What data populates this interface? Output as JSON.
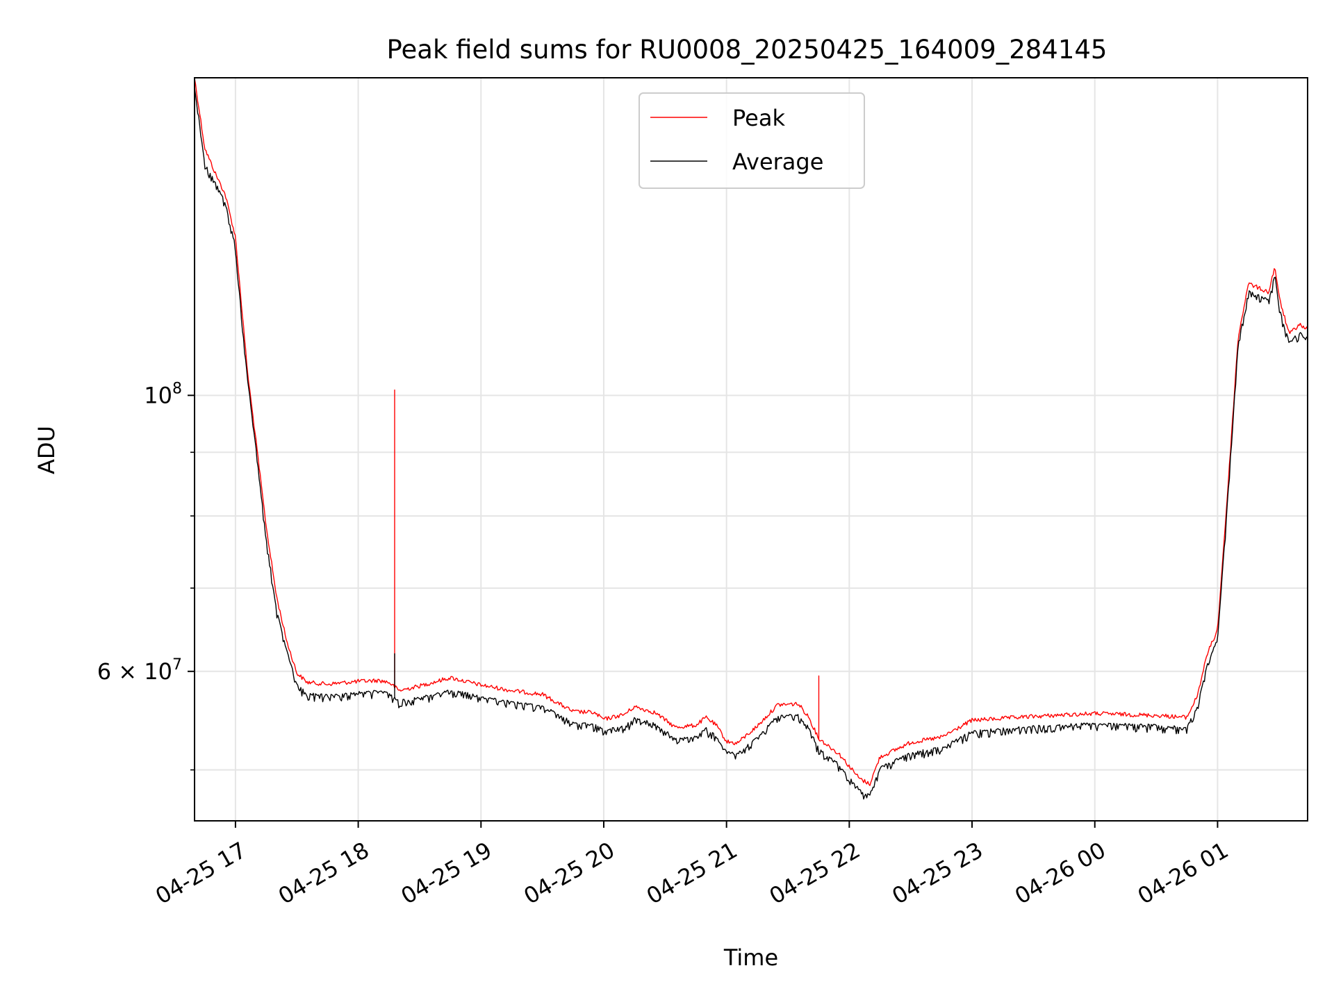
{
  "chart_data": {
    "type": "line",
    "title": "Peak field sums for RU0008_20250425_164009_284145",
    "xlabel": "Time",
    "ylabel": "ADU",
    "yscale": "log",
    "x_type": "datetime",
    "xlim": [
      "2025-04-25 16:40",
      "2025-04-26 01:44"
    ],
    "ylim": [
      45500000,
      180000000
    ],
    "x_ticks": [
      {
        "value": "2025-04-25 17:00",
        "label": "04-25 17"
      },
      {
        "value": "2025-04-25 18:00",
        "label": "04-25 18"
      },
      {
        "value": "2025-04-25 19:00",
        "label": "04-25 19"
      },
      {
        "value": "2025-04-25 20:00",
        "label": "04-25 20"
      },
      {
        "value": "2025-04-25 21:00",
        "label": "04-25 21"
      },
      {
        "value": "2025-04-25 22:00",
        "label": "04-25 22"
      },
      {
        "value": "2025-04-25 23:00",
        "label": "04-25 23"
      },
      {
        "value": "2025-04-26 00:00",
        "label": "04-26 00"
      },
      {
        "value": "2025-04-26 01:00",
        "label": "04-26 01"
      }
    ],
    "y_ticks_major": [
      {
        "value": 100000000,
        "base": "10",
        "exp": "8"
      },
      {
        "value": 60000000,
        "base": "6 × 10",
        "exp": "7"
      }
    ],
    "y_ticks_minor": [
      50000000,
      70000000,
      80000000,
      90000000
    ],
    "grid": true,
    "legend": {
      "position": "top-center",
      "entries": [
        "Peak",
        "Average"
      ]
    },
    "series": [
      {
        "name": "Peak",
        "color": "#ff0000",
        "points": [
          [
            "2025-04-25 16:40",
            180000000
          ],
          [
            "2025-04-25 16:45",
            158000000
          ],
          [
            "2025-04-25 16:50",
            151000000
          ],
          [
            "2025-04-25 16:55",
            145000000
          ],
          [
            "2025-04-25 17:00",
            134000000
          ],
          [
            "2025-04-25 17:03",
            118000000
          ],
          [
            "2025-04-25 17:06",
            104000000
          ],
          [
            "2025-04-25 17:10",
            92000000
          ],
          [
            "2025-04-25 17:15",
            78500000
          ],
          [
            "2025-04-25 17:20",
            69000000
          ],
          [
            "2025-04-25 17:25",
            63500000
          ],
          [
            "2025-04-25 17:30",
            59800000
          ],
          [
            "2025-04-25 17:35",
            58800000
          ],
          [
            "2025-04-25 17:45",
            58600000
          ],
          [
            "2025-04-25 18:00",
            58900000
          ],
          [
            "2025-04-25 18:10",
            59000000
          ],
          [
            "2025-04-25 18:15",
            58800000
          ],
          [
            "2025-04-25 18:20",
            57900000
          ],
          [
            "2025-04-25 18:30",
            58400000
          ],
          [
            "2025-04-25 18:45",
            59300000
          ],
          [
            "2025-04-25 19:00",
            58500000
          ],
          [
            "2025-04-25 19:15",
            57900000
          ],
          [
            "2025-04-25 19:30",
            57500000
          ],
          [
            "2025-04-25 19:45",
            55700000
          ],
          [
            "2025-04-25 19:55",
            55600000
          ],
          [
            "2025-04-25 20:00",
            54900000
          ],
          [
            "2025-04-25 20:10",
            55400000
          ],
          [
            "2025-04-25 20:15",
            56200000
          ],
          [
            "2025-04-25 20:25",
            55600000
          ],
          [
            "2025-04-25 20:35",
            54100000
          ],
          [
            "2025-04-25 20:45",
            54300000
          ],
          [
            "2025-04-25 20:50",
            55100000
          ],
          [
            "2025-04-25 20:55",
            54300000
          ],
          [
            "2025-04-25 21:00",
            52700000
          ],
          [
            "2025-04-25 21:05",
            52500000
          ],
          [
            "2025-04-25 21:15",
            54200000
          ],
          [
            "2025-04-25 21:25",
            56400000
          ],
          [
            "2025-04-25 21:35",
            56500000
          ],
          [
            "2025-04-25 21:40",
            55200000
          ],
          [
            "2025-04-25 21:45",
            53000000
          ],
          [
            "2025-04-25 21:55",
            51500000
          ],
          [
            "2025-04-25 22:05",
            49200000
          ],
          [
            "2025-04-25 22:10",
            48700000
          ],
          [
            "2025-04-25 22:15",
            51200000
          ],
          [
            "2025-04-25 22:30",
            52600000
          ],
          [
            "2025-04-25 22:45",
            53100000
          ],
          [
            "2025-04-25 23:00",
            54800000
          ],
          [
            "2025-04-25 23:30",
            55200000
          ],
          [
            "2025-04-26 00:00",
            55500000
          ],
          [
            "2025-04-26 00:30",
            55300000
          ],
          [
            "2025-04-26 00:45",
            55100000
          ],
          [
            "2025-04-26 00:50",
            57300000
          ],
          [
            "2025-04-26 00:55",
            62000000
          ],
          [
            "2025-04-26 01:00",
            64800000
          ],
          [
            "2025-04-26 01:05",
            84000000
          ],
          [
            "2025-04-26 01:10",
            111000000
          ],
          [
            "2025-04-26 01:15",
            123000000
          ],
          [
            "2025-04-26 01:20",
            122000000
          ],
          [
            "2025-04-26 01:25",
            121000000
          ],
          [
            "2025-04-26 01:28",
            127000000
          ],
          [
            "2025-04-26 01:30",
            120000000
          ],
          [
            "2025-04-26 01:35",
            112000000
          ],
          [
            "2025-04-26 01:40",
            114000000
          ],
          [
            "2025-04-26 01:44",
            113000000
          ]
        ],
        "spikes": [
          [
            "2025-04-25 18:18",
            101000000
          ],
          [
            "2025-04-25 21:45",
            59500000
          ]
        ]
      },
      {
        "name": "Average",
        "color": "#000000",
        "points": [
          [
            "2025-04-25 16:40",
            178000000
          ],
          [
            "2025-04-25 16:45",
            154000000
          ],
          [
            "2025-04-25 16:50",
            149000000
          ],
          [
            "2025-04-25 16:55",
            143000000
          ],
          [
            "2025-04-25 17:00",
            132000000
          ],
          [
            "2025-04-25 17:03",
            116000000
          ],
          [
            "2025-04-25 17:06",
            103000000
          ],
          [
            "2025-04-25 17:10",
            91000000
          ],
          [
            "2025-04-25 17:15",
            77000000
          ],
          [
            "2025-04-25 17:20",
            67500000
          ],
          [
            "2025-04-25 17:25",
            62500000
          ],
          [
            "2025-04-25 17:30",
            58700000
          ],
          [
            "2025-04-25 17:35",
            57700000
          ],
          [
            "2025-04-25 17:45",
            57500000
          ],
          [
            "2025-04-25 18:00",
            57800000
          ],
          [
            "2025-04-25 18:10",
            58000000
          ],
          [
            "2025-04-25 18:15",
            57700000
          ],
          [
            "2025-04-25 18:20",
            56900000
          ],
          [
            "2025-04-25 18:30",
            57300000
          ],
          [
            "2025-04-25 18:45",
            58100000
          ],
          [
            "2025-04-25 19:00",
            57400000
          ],
          [
            "2025-04-25 19:15",
            56800000
          ],
          [
            "2025-04-25 19:30",
            56400000
          ],
          [
            "2025-04-25 19:45",
            54700000
          ],
          [
            "2025-04-25 19:55",
            54500000
          ],
          [
            "2025-04-25 20:00",
            53900000
          ],
          [
            "2025-04-25 20:10",
            54300000
          ],
          [
            "2025-04-25 20:15",
            55100000
          ],
          [
            "2025-04-25 20:25",
            54600000
          ],
          [
            "2025-04-25 20:35",
            53100000
          ],
          [
            "2025-04-25 20:45",
            53300000
          ],
          [
            "2025-04-25 20:50",
            54100000
          ],
          [
            "2025-04-25 20:55",
            53300000
          ],
          [
            "2025-04-25 21:00",
            51800000
          ],
          [
            "2025-04-25 21:05",
            51600000
          ],
          [
            "2025-04-25 21:15",
            53200000
          ],
          [
            "2025-04-25 21:25",
            55400000
          ],
          [
            "2025-04-25 21:35",
            55500000
          ],
          [
            "2025-04-25 21:40",
            54200000
          ],
          [
            "2025-04-25 21:45",
            52100000
          ],
          [
            "2025-04-25 21:55",
            50600000
          ],
          [
            "2025-04-25 22:05",
            48300000
          ],
          [
            "2025-04-25 22:10",
            47800000
          ],
          [
            "2025-04-25 22:15",
            50300000
          ],
          [
            "2025-04-25 22:30",
            51700000
          ],
          [
            "2025-04-25 22:45",
            52200000
          ],
          [
            "2025-04-25 23:00",
            53800000
          ],
          [
            "2025-04-25 23:30",
            54300000
          ],
          [
            "2025-04-26 00:00",
            54600000
          ],
          [
            "2025-04-26 00:30",
            54400000
          ],
          [
            "2025-04-26 00:45",
            54200000
          ],
          [
            "2025-04-26 00:50",
            56300000
          ],
          [
            "2025-04-26 00:55",
            61000000
          ],
          [
            "2025-04-26 01:00",
            63800000
          ],
          [
            "2025-04-26 01:05",
            83000000
          ],
          [
            "2025-04-26 01:10",
            110000000
          ],
          [
            "2025-04-26 01:15",
            121500000
          ],
          [
            "2025-04-26 01:20",
            120500000
          ],
          [
            "2025-04-26 01:25",
            119500000
          ],
          [
            "2025-04-26 01:28",
            125500000
          ],
          [
            "2025-04-26 01:30",
            118000000
          ],
          [
            "2025-04-26 01:35",
            110500000
          ],
          [
            "2025-04-26 01:40",
            112500000
          ],
          [
            "2025-04-26 01:44",
            111500000
          ]
        ],
        "spikes": [
          [
            "2025-04-25 18:18",
            62000000
          ]
        ]
      }
    ]
  }
}
